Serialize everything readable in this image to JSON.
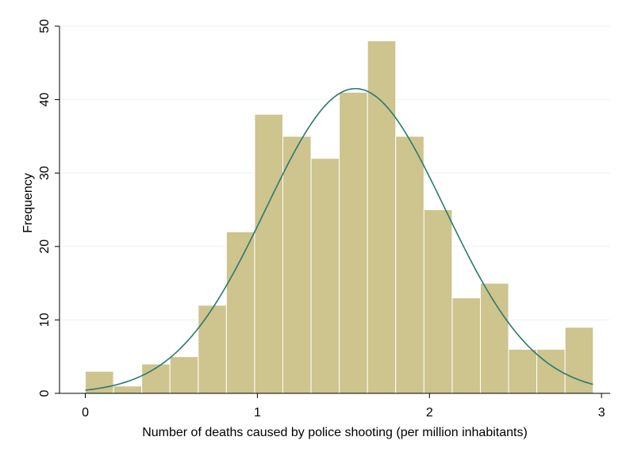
{
  "chart_data": {
    "type": "bar",
    "title": "",
    "xlabel": "Number of deaths caused by police shooting (per million inhabitants)",
    "ylabel": "Frequency",
    "xlim": [
      -0.15,
      3.05
    ],
    "ylim": [
      0,
      50
    ],
    "x_ticks": [
      0,
      1,
      2,
      3
    ],
    "y_ticks": [
      0,
      10,
      20,
      30,
      40,
      50
    ],
    "grid": true,
    "legend": "none",
    "bin_width": 0.164,
    "bin_start": 0.0,
    "values": [
      3,
      1,
      4,
      5,
      12,
      22,
      38,
      35,
      32,
      41,
      48,
      35,
      25,
      13,
      15,
      6,
      6,
      9
    ],
    "bar_color": "#cdc48e",
    "normal_curve": {
      "mean": 1.57,
      "sd": 0.52,
      "peak": 41.5,
      "color": "#2a7a6e"
    }
  }
}
